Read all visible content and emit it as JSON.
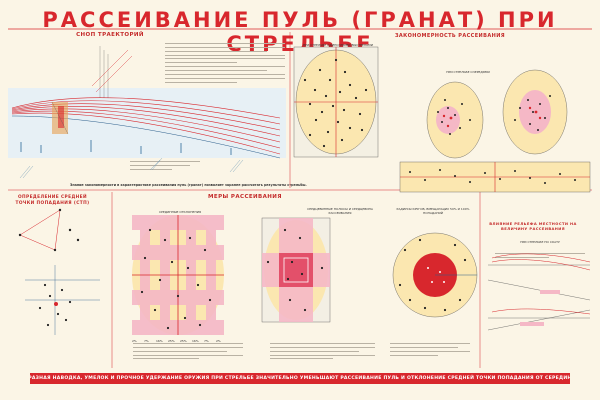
{
  "poster": {
    "top_note": "",
    "title": "РАССЕИВАНИЕ ПУЛЬ (ГРАНАТ) ПРИ СТРЕЛЬБЕ",
    "sections": {
      "sheaf": "СНОП ТРАЕКТОРИЙ",
      "dispersion_law": "ЗАКОНОМЕРНОСТЬ РАССЕИВАНИЯ",
      "mpi": "ОПРЕДЕЛЕНИЕ СРЕДНЕЙ ТОЧКИ ПОПАДАНИЯ (СТП)",
      "measures": "МЕРЫ РАССЕИВАНИЯ",
      "terrain": "ВЛИЯНИЕ РЕЛЬЕФА МЕСТНОСТИ НА ВЕЛИЧИНУ РАССЕИВАНИЯ"
    },
    "sub_labels": {
      "vertical_target": "ПРИ СТРЕЛЬБЕ ОДИНОЧНЫМИ ВЫСТРЕЛАМИ",
      "bursts": "ПРИ СТРЕЛЬБЕ ОЧЕРЕДЯМИ",
      "median_deviations": "СРЕДИННЫЕ ОТКЛОНЕНИЯ",
      "core_strips": "СЕРДЦЕВИННЫЕ ПОЛОСЫ И СЕРДЦЕВИНА РАССЕИВАНИЯ",
      "radius": "РАДИУСЫ КРУГОВ, ВМЕЩАЮЩИХ 50% И 100% ПОПАДАНИЙ",
      "slope": "ПРИ СТРЕЛЬБЕ ПО СКАТУ"
    },
    "summary_text": "Знание закономерности в характеристике рассеивания пуль (гранат) позволяет заранее рассчитать результаты стрельбы.",
    "banner": "ОДНООБРАЗНАЯ НАВОДКА, УМЕЛОК И ПРОЧНОЕ УДЕРЖАНИЕ ОРУЖИЯ ПРИ СТРЕЛЬБЕ ЗНАЧИТЕЛЬНО УМЕНЬШАЮТ РАССЕИВАНИЕ ПУЛЬ И ОТКЛОНЕНИЕ СРЕДНЕЙ ТОЧКИ ПОПАДАНИЯ ОТ СЕРЕДИНЫ ЦЕЛИ.",
    "percent_labels": [
      "2%",
      "7%",
      "16%",
      "25%",
      "25%",
      "16%",
      "7%",
      "2%"
    ],
    "colors": {
      "accent": "#d8272d",
      "pink": "#f5b8c6",
      "cream": "#fbf5e6",
      "ellipse_fill": "#fbe7b0"
    }
  }
}
